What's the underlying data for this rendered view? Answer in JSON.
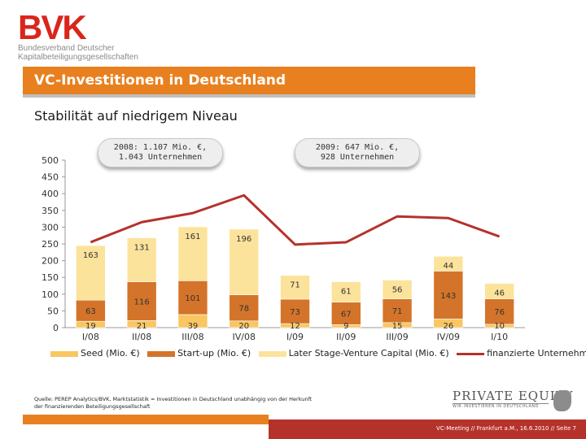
{
  "brand": {
    "mark": "BVK",
    "subline1": "Bundesverband Deutscher",
    "subline2": "Kapitalbeteiligungsgesellschaften"
  },
  "header": {
    "title": "VC-Investitionen in Deutschland",
    "subtitle": "Stabilität auf niedrigem Niveau"
  },
  "callouts": [
    {
      "line1": "2008: 1.107 Mio. €,",
      "line2": "1.043 Unternehmen"
    },
    {
      "line1": "2009: 647 Mio. €,",
      "line2": "928 Unternehmen"
    }
  ],
  "colors": {
    "seed": "#f9c661",
    "startup": "#d3742a",
    "later": "#fce39c",
    "line": "#b5322b",
    "accent": "#e9801f"
  },
  "chart_data": {
    "type": "bar",
    "stacked": true,
    "categories": [
      "I/08",
      "II/08",
      "III/08",
      "IV/08",
      "I/09",
      "II/09",
      "III/09",
      "IV/09",
      "I/10"
    ],
    "ylim": [
      0,
      500
    ],
    "yticks": [
      0,
      50,
      100,
      150,
      200,
      250,
      300,
      350,
      400,
      450,
      500
    ],
    "grid": false,
    "legend_position": "bottom",
    "series": [
      {
        "name": "Seed (Mio. €)",
        "values": [
          19,
          21,
          39,
          20,
          12,
          9,
          15,
          26,
          10
        ]
      },
      {
        "name": "Start-up (Mio. €)",
        "values": [
          63,
          116,
          101,
          78,
          73,
          67,
          71,
          143,
          76
        ]
      },
      {
        "name": "Later Stage-Venture Capital (Mio. €)",
        "values": [
          163,
          131,
          161,
          196,
          71,
          61,
          56,
          44,
          46
        ]
      },
      {
        "name": "finanzierte Unternehmen",
        "type": "line",
        "values": [
          255,
          315,
          342,
          395,
          248,
          255,
          332,
          327,
          272
        ]
      }
    ]
  },
  "footer": {
    "source_line1": "Quelle: PEREP Analytics/BVK, Marktstatistik = Investitionen in Deutschland unabhängig von der Herkunft",
    "source_line2": "der finanzierenden Beteiligungsgesellschaft",
    "meeting": "VC-Meeting // Frankfurt a.M., 16.6.2010 // Seite 7",
    "pe_logo": "PRIVATE EQUITY",
    "pe_tagline": "WIR INVESTIEREN IN DEUTSCHLAND"
  }
}
